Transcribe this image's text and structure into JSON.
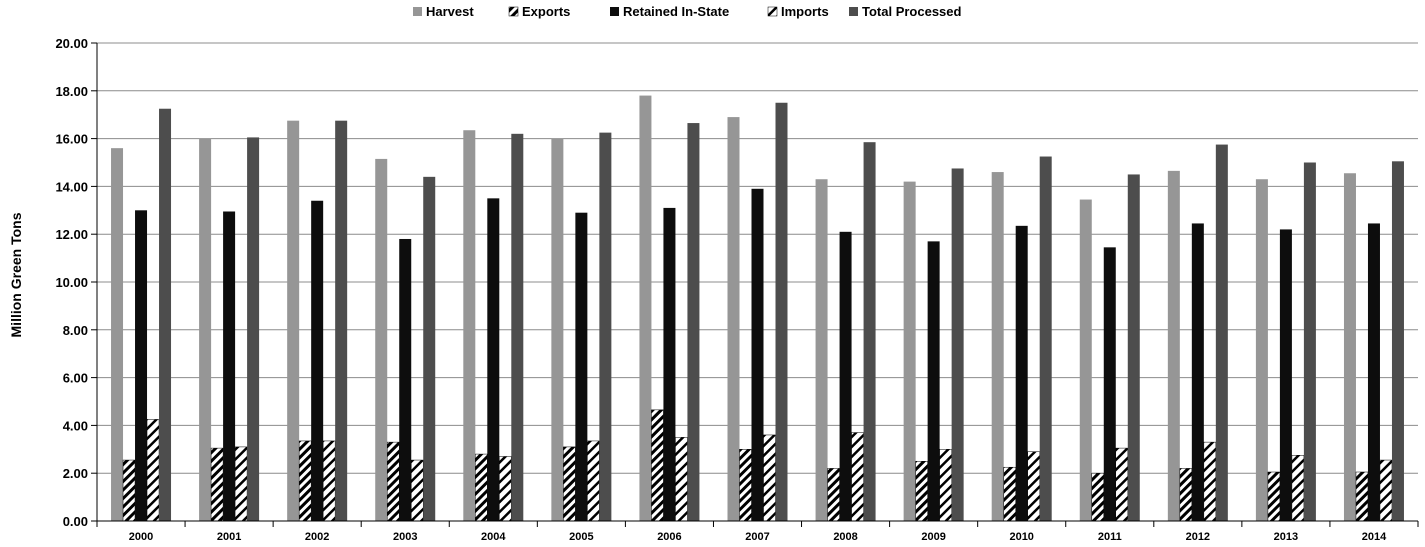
{
  "chart_data": {
    "type": "bar",
    "title": "",
    "xlabel": "",
    "ylabel": "Million Green Tons",
    "ylim": [
      0,
      20
    ],
    "ytick_step": 2,
    "ytick_labels": [
      "0.00",
      "2.00",
      "4.00",
      "6.00",
      "8.00",
      "10.00",
      "12.00",
      "14.00",
      "16.00",
      "18.00",
      "20.00"
    ],
    "grid": true,
    "legend_position": "top",
    "categories": [
      "2000",
      "2001",
      "2002",
      "2003",
      "2004",
      "2005",
      "2006",
      "2007",
      "2008",
      "2009",
      "2010",
      "2011",
      "2012",
      "2013",
      "2014"
    ],
    "series": [
      {
        "name": "Harvest",
        "color": "#969696",
        "pattern": "solid",
        "values": [
          15.6,
          16.0,
          16.75,
          15.15,
          16.35,
          16.0,
          17.8,
          16.9,
          14.3,
          14.2,
          14.6,
          13.45,
          14.65,
          14.3,
          14.55
        ]
      },
      {
        "name": "Exports",
        "color": "#000000",
        "pattern": "diagonal-dense",
        "values": [
          2.55,
          3.05,
          3.35,
          3.3,
          2.8,
          3.1,
          4.65,
          3.0,
          2.2,
          2.5,
          2.25,
          2.0,
          2.2,
          2.05,
          2.05
        ]
      },
      {
        "name": "Retained In-State",
        "color": "#0d0d0d",
        "pattern": "solid",
        "values": [
          13.0,
          12.95,
          13.4,
          11.8,
          13.5,
          12.9,
          13.1,
          13.9,
          12.1,
          11.7,
          12.35,
          11.45,
          12.45,
          12.2,
          12.45
        ]
      },
      {
        "name": "Imports",
        "color": "#000000",
        "pattern": "diagonal-wide",
        "values": [
          4.25,
          3.1,
          3.35,
          2.55,
          2.7,
          3.35,
          3.5,
          3.6,
          3.7,
          3.0,
          2.9,
          3.05,
          3.3,
          2.75,
          2.55
        ]
      },
      {
        "name": "Total Processed",
        "color": "#4d4d4d",
        "pattern": "solid",
        "values": [
          17.25,
          16.05,
          16.75,
          14.4,
          16.2,
          16.25,
          16.65,
          17.5,
          15.85,
          14.75,
          15.25,
          14.5,
          15.75,
          15.0,
          15.05
        ]
      }
    ]
  }
}
